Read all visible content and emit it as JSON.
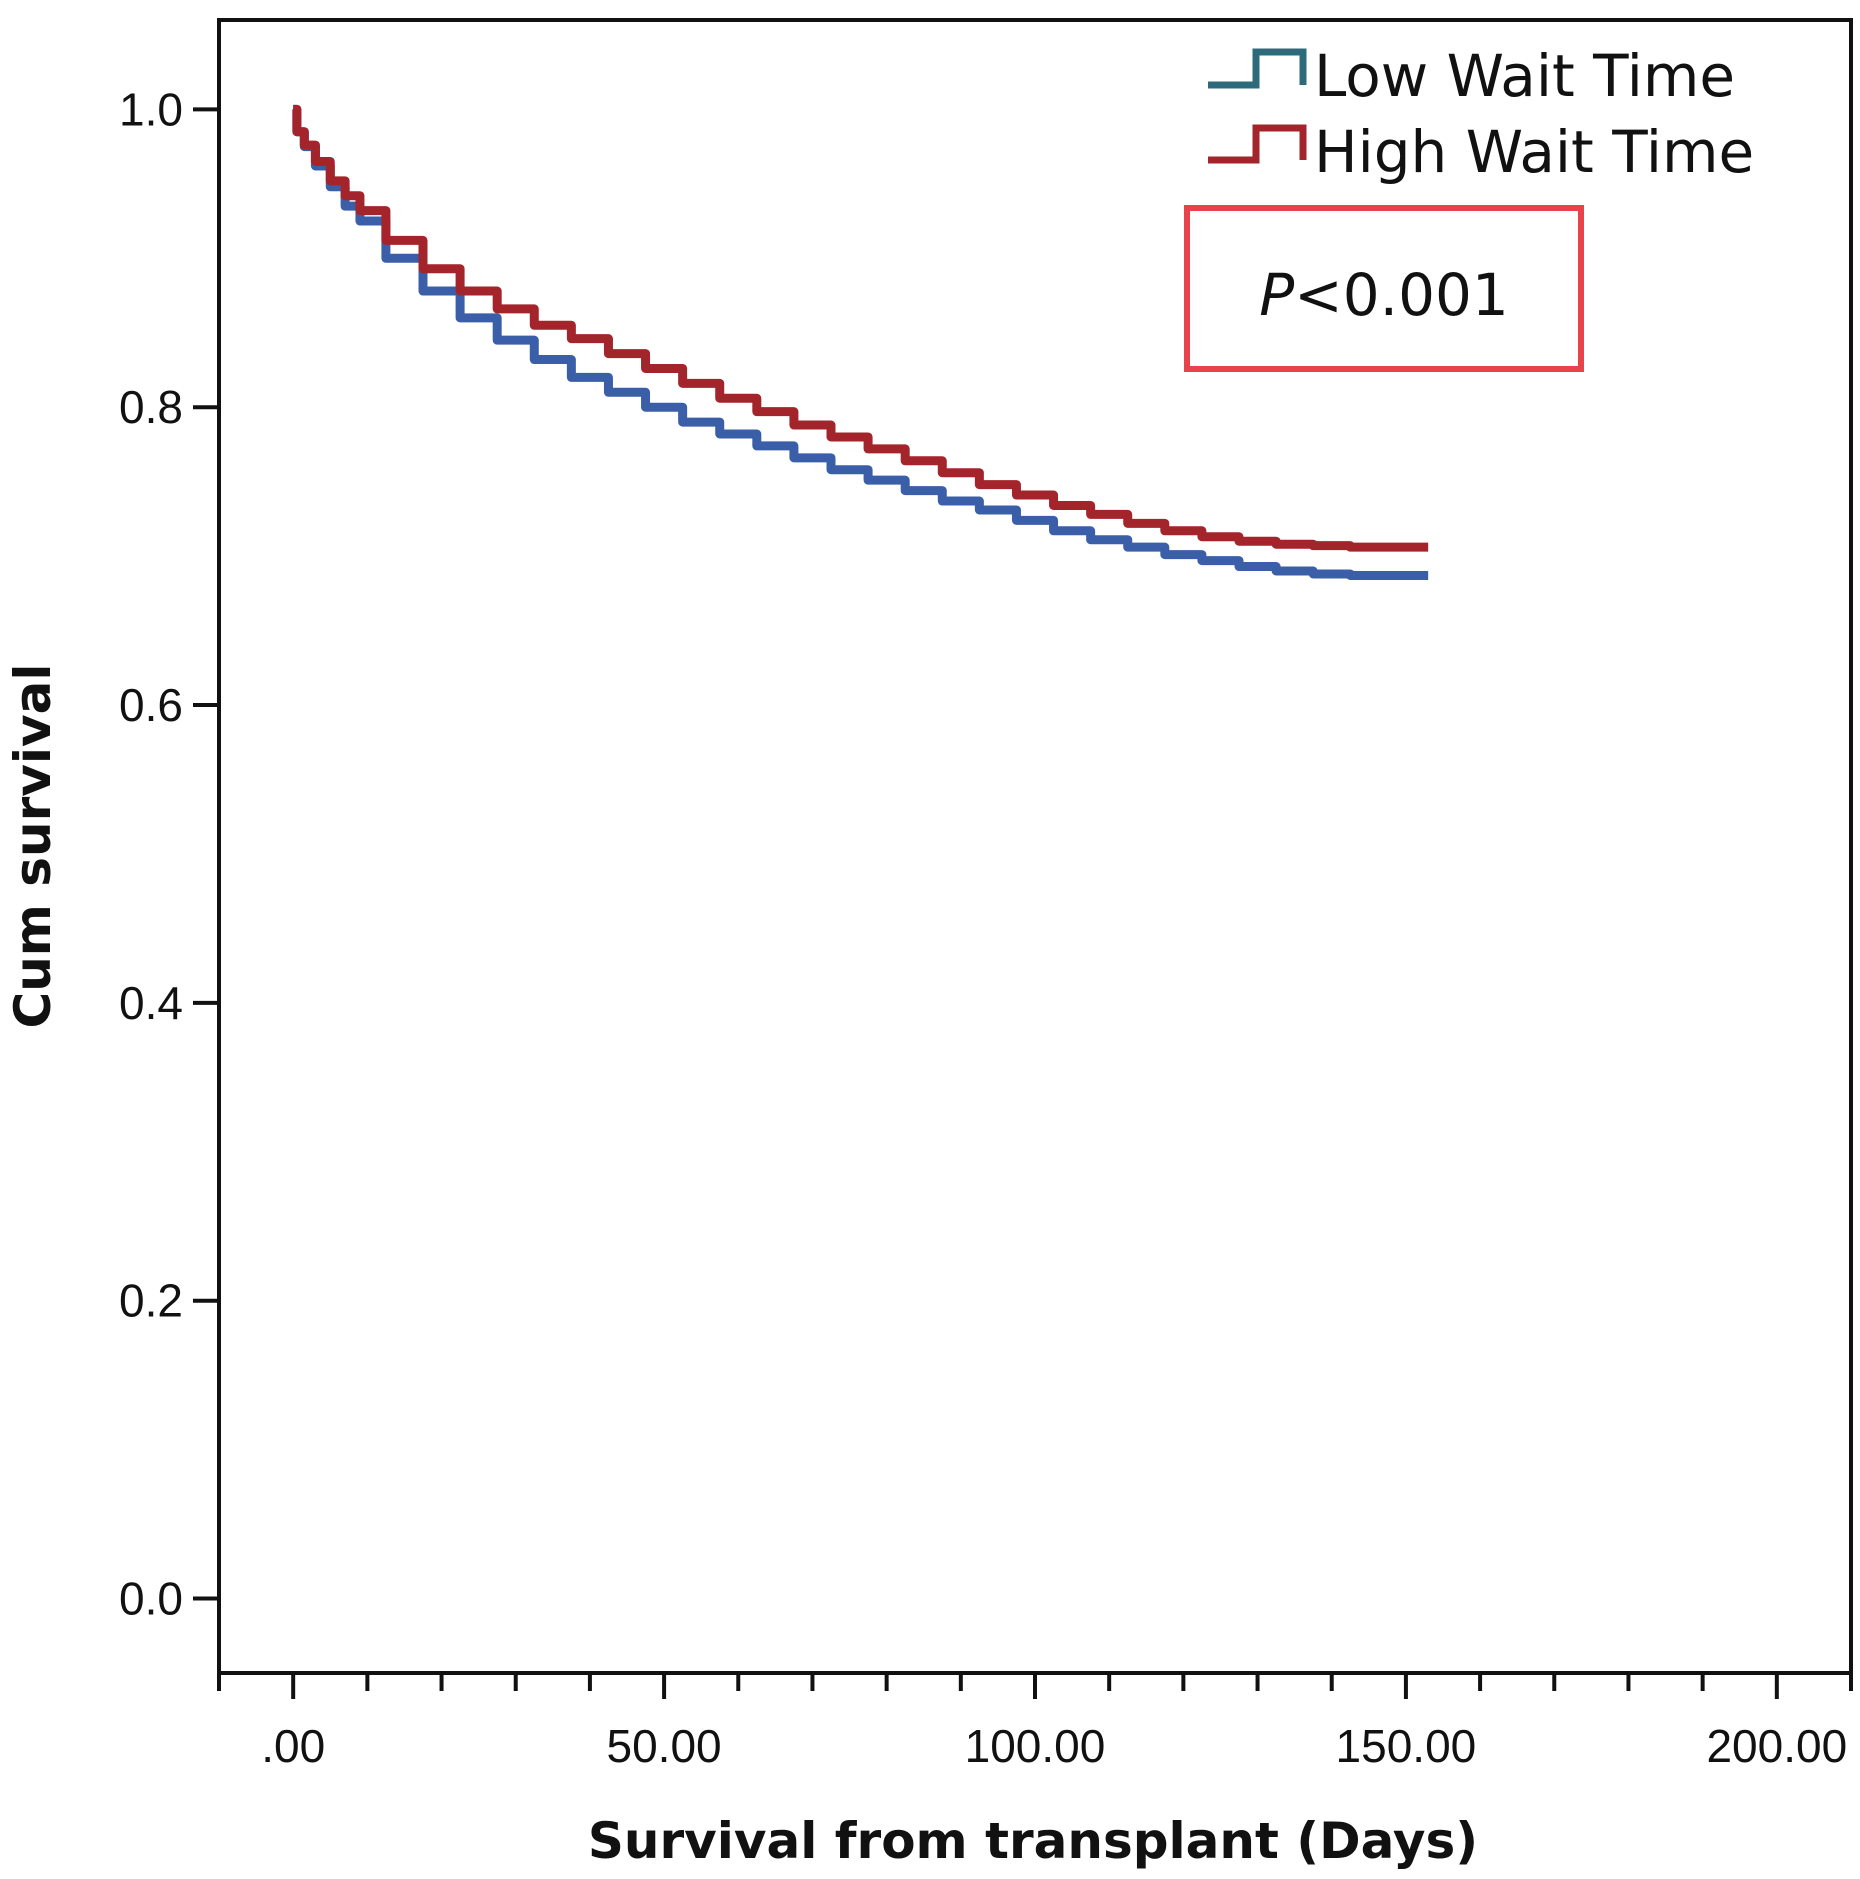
{
  "chart_data": {
    "type": "line",
    "xlabel": "Survival from transplant (Days)",
    "ylabel": "Cum survival",
    "xlim": [
      -10,
      210
    ],
    "ylim": [
      -0.05,
      1.06
    ],
    "x_ticks": [
      0,
      50,
      100,
      150,
      200
    ],
    "x_tick_labels": [
      ".00",
      "50.00",
      "100.00",
      "150.00",
      "200.00"
    ],
    "x_minor_step": 10,
    "y_ticks": [
      0.0,
      0.2,
      0.4,
      0.6,
      0.8,
      1.0
    ],
    "y_tick_labels": [
      "0.0",
      "0.2",
      "0.4",
      "0.6",
      "0.8",
      "1.0"
    ],
    "grid": false,
    "legend_position": "top-right",
    "series": [
      {
        "name": "Low Wait Time",
        "color": "#3a5fa8",
        "legend_color": "#2e6b7a",
        "x": [
          0,
          1,
          2,
          4,
          6,
          8,
          10,
          15,
          20,
          25,
          30,
          35,
          40,
          45,
          50,
          55,
          60,
          65,
          70,
          75,
          80,
          85,
          90,
          95,
          100,
          105,
          110,
          115,
          120,
          125,
          130,
          135,
          140,
          145,
          150,
          153
        ],
        "y": [
          1.0,
          0.985,
          0.975,
          0.962,
          0.948,
          0.935,
          0.925,
          0.9,
          0.878,
          0.86,
          0.845,
          0.832,
          0.82,
          0.81,
          0.8,
          0.79,
          0.782,
          0.774,
          0.766,
          0.758,
          0.751,
          0.744,
          0.737,
          0.731,
          0.724,
          0.717,
          0.711,
          0.706,
          0.701,
          0.697,
          0.693,
          0.69,
          0.688,
          0.687,
          0.687,
          0.687
        ]
      },
      {
        "name": "High Wait Time",
        "color": "#a3242b",
        "legend_color": "#a3242b",
        "x": [
          0,
          1,
          2,
          4,
          6,
          8,
          10,
          15,
          20,
          25,
          30,
          35,
          40,
          45,
          50,
          55,
          60,
          65,
          70,
          75,
          80,
          85,
          90,
          95,
          100,
          105,
          110,
          115,
          120,
          125,
          130,
          135,
          140,
          145,
          150,
          153
        ],
        "y": [
          1.0,
          0.985,
          0.976,
          0.965,
          0.952,
          0.942,
          0.932,
          0.912,
          0.893,
          0.878,
          0.866,
          0.855,
          0.846,
          0.836,
          0.826,
          0.816,
          0.806,
          0.797,
          0.788,
          0.78,
          0.772,
          0.764,
          0.756,
          0.748,
          0.741,
          0.734,
          0.728,
          0.722,
          0.717,
          0.713,
          0.71,
          0.708,
          0.707,
          0.706,
          0.706,
          0.706
        ]
      }
    ],
    "annotation": {
      "p_letter": "P",
      "p_value": "<0.001",
      "box_color": "#e8424a"
    }
  }
}
